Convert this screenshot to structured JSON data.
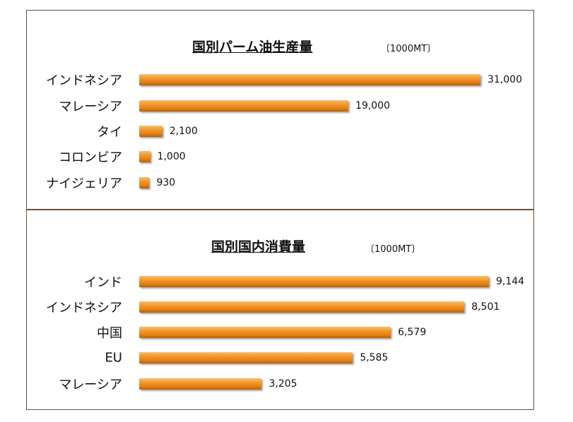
{
  "chart_data": [
    {
      "type": "bar",
      "orientation": "horizontal",
      "title": "国別パーム油生産量",
      "unit": "〔1000MT〕",
      "categories": [
        "インドネシア",
        "マレーシア",
        "タイ",
        "コロンビア",
        "ナイジェリア"
      ],
      "values": [
        31000,
        19000,
        2100,
        1000,
        930
      ],
      "value_labels": [
        "31,000",
        "19,000",
        "2,100",
        "1,000",
        "930"
      ]
    },
    {
      "type": "bar",
      "orientation": "horizontal",
      "title": "国別国内消費量",
      "unit": "〔1000MT〕",
      "categories": [
        "インド",
        "インドネシア",
        "中国",
        "EU",
        "マレーシア"
      ],
      "values": [
        9144,
        8501,
        6579,
        5585,
        3205
      ],
      "value_labels": [
        "9,144",
        "8,501",
        "6,579",
        "5,585",
        "3,205"
      ]
    }
  ]
}
